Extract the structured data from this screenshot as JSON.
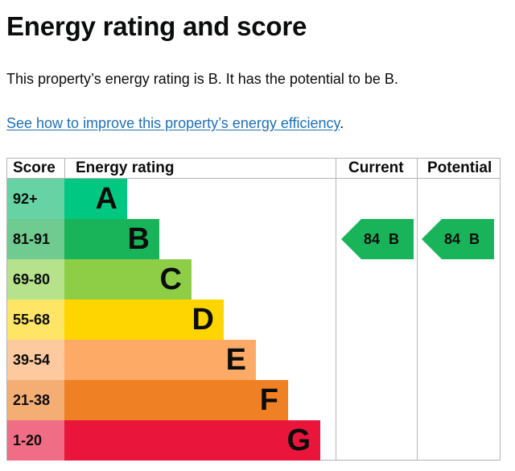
{
  "page": {
    "title": "Energy rating and score",
    "summary": "This property’s energy rating is B. It has the potential to be B.",
    "improve_link": "See how to improve this property’s energy efficiency",
    "improve_link_suffix": "."
  },
  "chart": {
    "headers": {
      "score": "Score",
      "rating": "Energy rating",
      "current": "Current",
      "potential": "Potential"
    },
    "bands": [
      {
        "score": "92+",
        "letter": "A",
        "bar_color": "#00c781",
        "score_color": "#67d3a4"
      },
      {
        "score": "81-91",
        "letter": "B",
        "bar_color": "#19b459",
        "score_color": "#6fcb8f"
      },
      {
        "score": "69-80",
        "letter": "C",
        "bar_color": "#8dce46",
        "score_color": "#b6e28b"
      },
      {
        "score": "55-68",
        "letter": "D",
        "bar_color": "#ffd500",
        "score_color": "#ffe565"
      },
      {
        "score": "39-54",
        "letter": "E",
        "bar_color": "#fcaa65",
        "score_color": "#fdca9f"
      },
      {
        "score": "21-38",
        "letter": "F",
        "bar_color": "#ef8023",
        "score_color": "#f4ae74"
      },
      {
        "score": "1-20",
        "letter": "G",
        "bar_color": "#e9153b",
        "score_color": "#f06d85"
      }
    ],
    "current": {
      "score": "84",
      "letter": "B",
      "color": "#19b459"
    },
    "potential": {
      "score": "84",
      "letter": "B",
      "color": "#19b459"
    }
  },
  "chart_data": {
    "type": "table",
    "title": "Energy rating and score",
    "categories": [
      "A",
      "B",
      "C",
      "D",
      "E",
      "F",
      "G"
    ],
    "score_ranges": [
      "92+",
      "81-91",
      "69-80",
      "55-68",
      "39-54",
      "21-38",
      "1-20"
    ],
    "current": {
      "score": 84,
      "rating": "B"
    },
    "potential": {
      "score": 84,
      "rating": "B"
    }
  }
}
